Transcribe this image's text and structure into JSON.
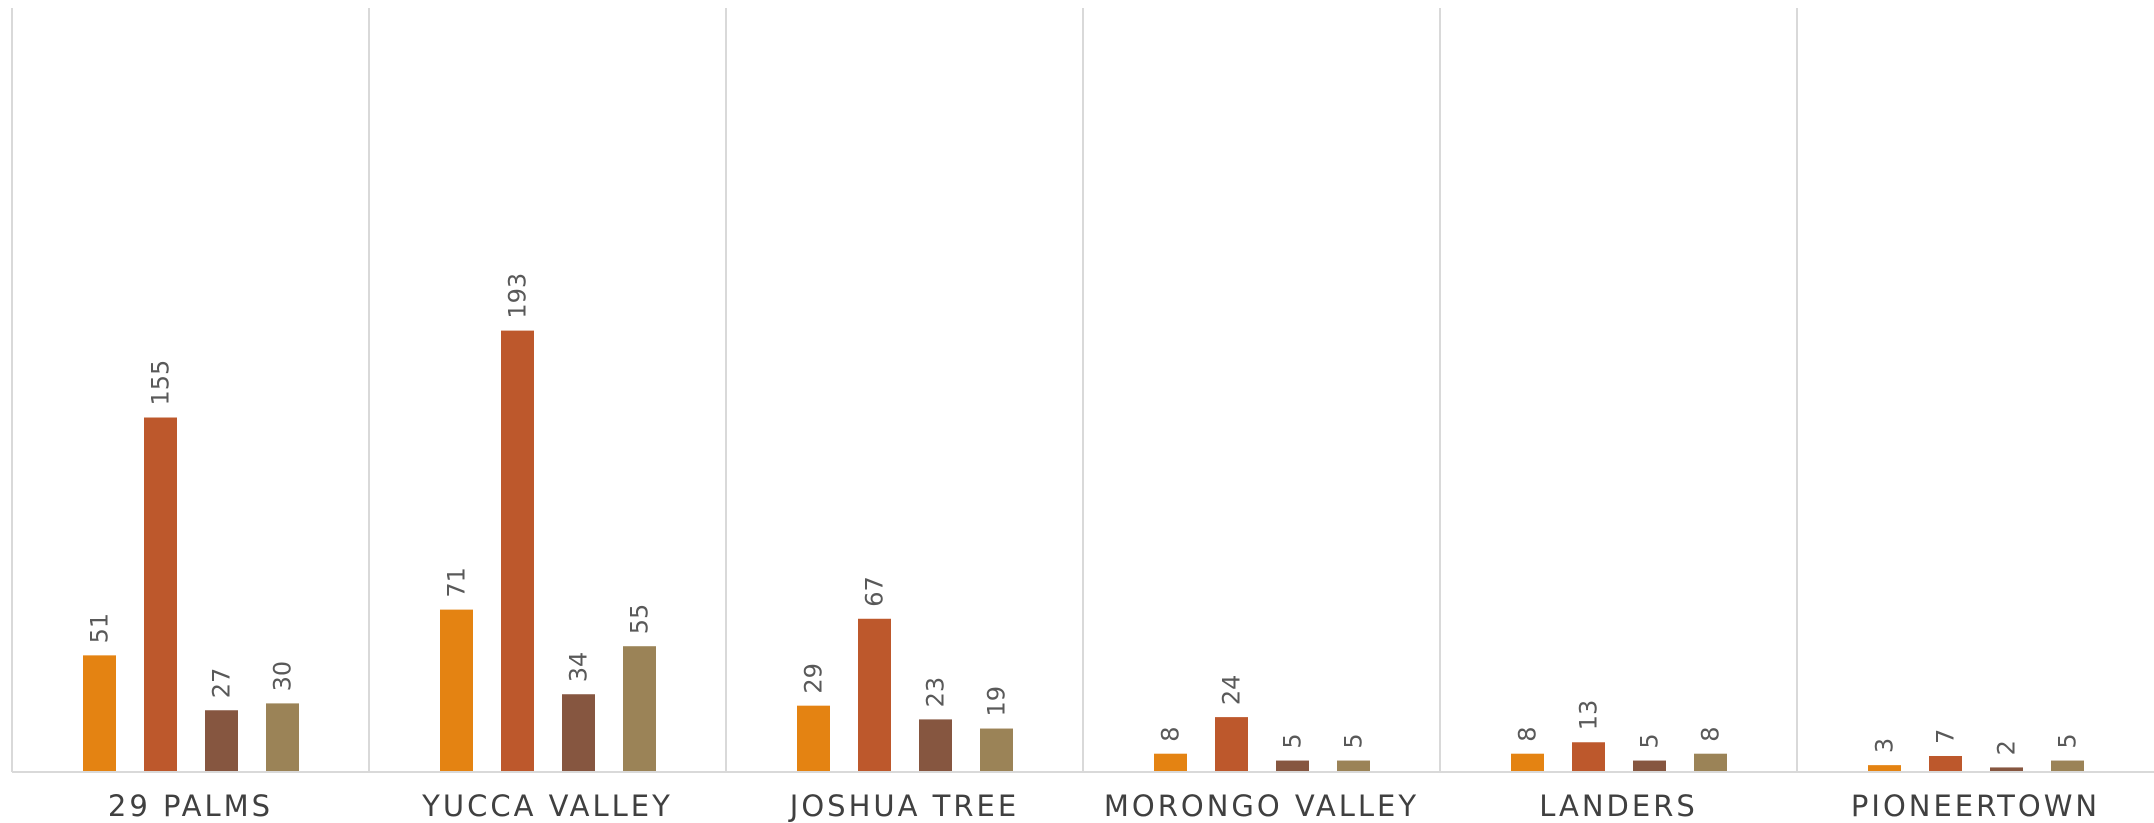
{
  "chart_data": {
    "type": "bar",
    "title": "",
    "xlabel": "",
    "ylabel": "",
    "categories": [
      "29 PALMS",
      "YUCCA VALLEY",
      "JOSHUA TREE",
      "MORONGO VALLEY",
      "LANDERS",
      "PIONEERTOWN"
    ],
    "series": [
      {
        "values": [
          51,
          71,
          29,
          8,
          8,
          3
        ],
        "color": "#E48312"
      },
      {
        "values": [
          155,
          193,
          67,
          24,
          13,
          7
        ],
        "color": "#BD582C"
      },
      {
        "values": [
          27,
          34,
          23,
          5,
          5,
          2
        ],
        "color": "#865640"
      },
      {
        "values": [
          30,
          55,
          19,
          5,
          8,
          5
        ],
        "color": "#9B8357"
      }
    ],
    "ylim": [
      0,
      250
    ],
    "legend": false,
    "grid": false,
    "data_labels": true,
    "category_separators": true
  }
}
